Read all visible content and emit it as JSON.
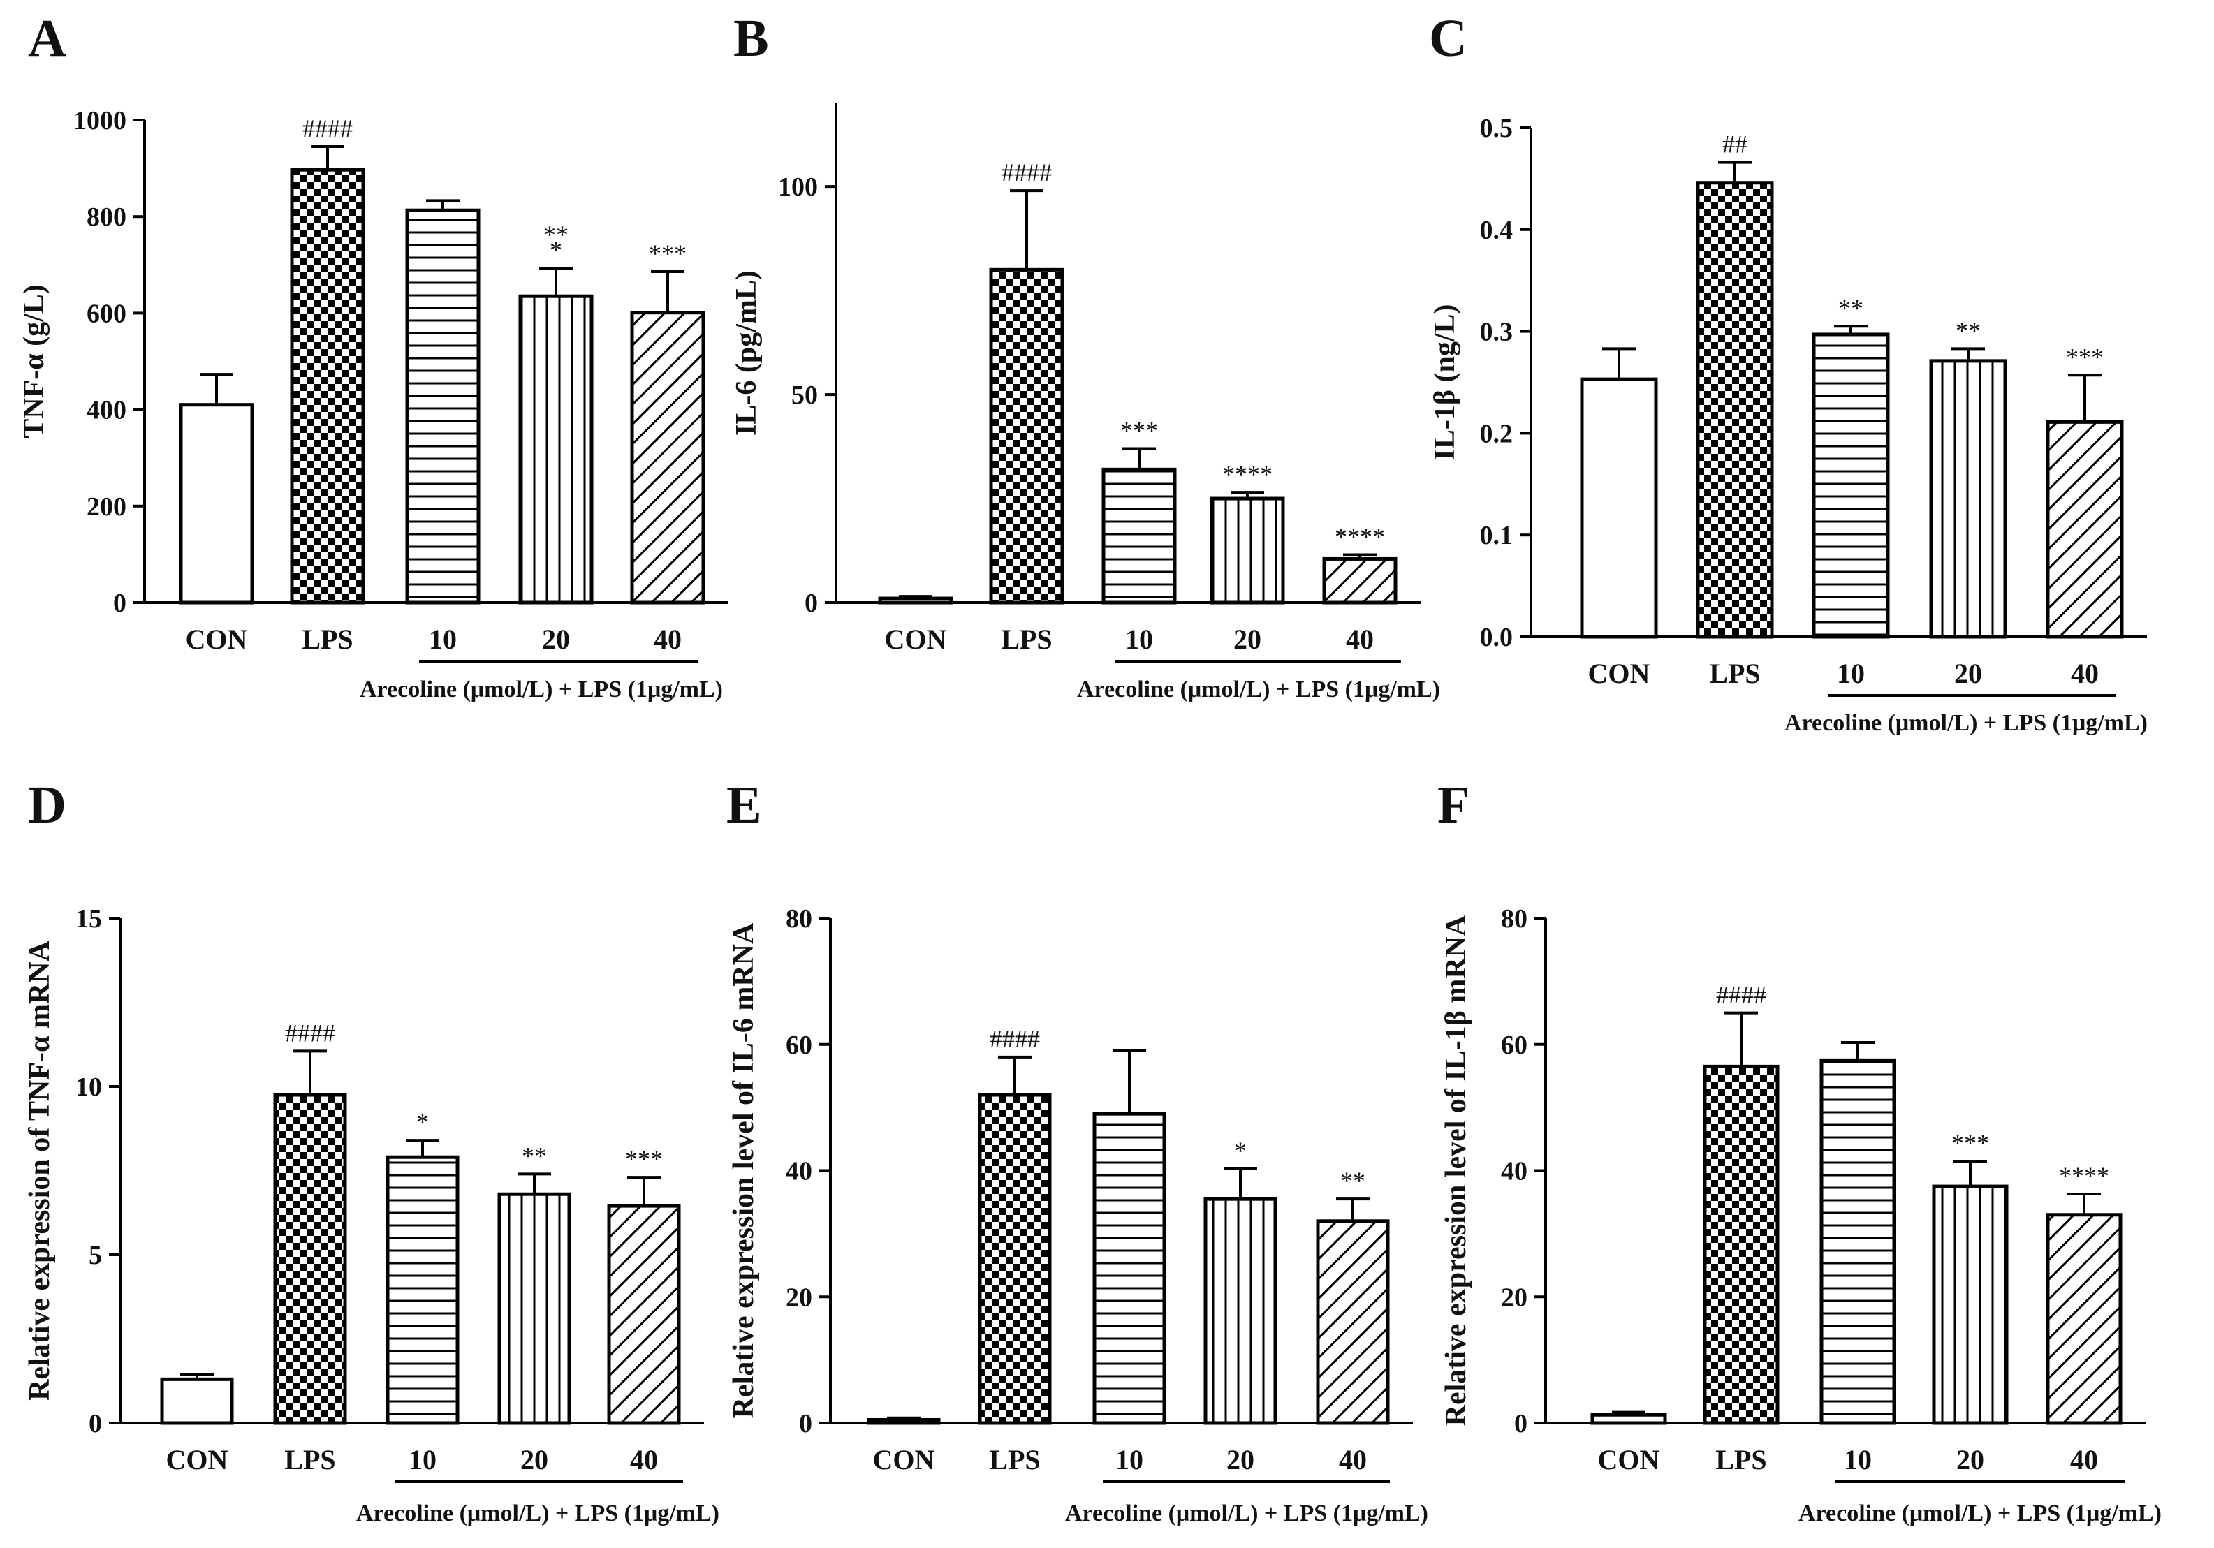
{
  "chart_data": [
    {
      "panel": "A",
      "type": "bar",
      "ylabel": "TNF-α (g/L)",
      "categories": [
        "CON",
        "LPS",
        "10",
        "20",
        "40"
      ],
      "values": [
        410,
        897,
        813,
        635,
        601
      ],
      "errors": [
        63,
        48,
        20,
        58,
        85
      ],
      "significance": [
        "",
        "####",
        "",
        "**\n*",
        "***"
      ],
      "group_label": "Arecoline (μmol/L) + LPS (1μg/mL)",
      "ylim": [
        0,
        1000
      ],
      "yticks": [
        0,
        200,
        400,
        600,
        800,
        1000
      ],
      "ytick_labels": [
        "0",
        "200",
        "400",
        "600",
        "800",
        "1000"
      ]
    },
    {
      "panel": "B",
      "type": "bar",
      "ylabel": "IL-6 (pg/mL)",
      "categories": [
        "CON",
        "LPS",
        "10",
        "20",
        "40"
      ],
      "values": [
        1,
        80,
        32,
        25,
        10.5
      ],
      "errors": [
        0.5,
        19,
        5,
        1.5,
        1
      ],
      "significance": [
        "",
        "####",
        "***",
        "****",
        "****"
      ],
      "group_label": "Arecoline (μmol/L) + LPS (1μg/mL)",
      "ylim": [
        0,
        120
      ],
      "yticks": [
        0,
        50,
        100
      ],
      "ytick_labels": [
        "0",
        "50",
        "100"
      ]
    },
    {
      "panel": "C",
      "type": "bar",
      "ylabel": "IL-1β (ng/L)",
      "categories": [
        "CON",
        "LPS",
        "10",
        "20",
        "40"
      ],
      "values": [
        0.253,
        0.446,
        0.297,
        0.271,
        0.211
      ],
      "errors": [
        0.03,
        0.02,
        0.008,
        0.012,
        0.046
      ],
      "significance": [
        "",
        "##",
        "**",
        "**",
        "***"
      ],
      "group_label": "Arecoline (μmol/L) + LPS (1μg/mL)",
      "ylim": [
        0,
        0.5
      ],
      "yticks": [
        0,
        0.1,
        0.2,
        0.3,
        0.4,
        0.5
      ],
      "ytick_labels": [
        "0.0",
        "0.1",
        "0.2",
        "0.3",
        "0.4",
        "0.5"
      ]
    },
    {
      "panel": "D",
      "type": "bar",
      "ylabel": "Relative expression of TNF-α mRNA",
      "categories": [
        "CON",
        "LPS",
        "10",
        "20",
        "40"
      ],
      "values": [
        1.3,
        9.75,
        7.9,
        6.8,
        6.45
      ],
      "errors": [
        0.15,
        1.3,
        0.5,
        0.6,
        0.85
      ],
      "significance": [
        "",
        "####",
        "*",
        "**",
        "***"
      ],
      "group_label": "Arecoline (μmol/L) + LPS (1μg/mL)",
      "ylim": [
        0,
        15
      ],
      "yticks": [
        0,
        5,
        10,
        15
      ],
      "ytick_labels": [
        "0",
        "5",
        "10",
        "15"
      ]
    },
    {
      "panel": "E",
      "type": "bar",
      "ylabel": "Relative expression level of IL-6 mRNA",
      "categories": [
        "CON",
        "LPS",
        "10",
        "20",
        "40"
      ],
      "values": [
        0.5,
        52,
        49,
        35.5,
        32
      ],
      "errors": [
        0.3,
        6,
        10,
        4.8,
        3.5
      ],
      "significance": [
        "",
        "####",
        "",
        "*",
        "**"
      ],
      "group_label": "Arecoline (μmol/L) + LPS (1μg/mL)",
      "ylim": [
        0,
        80
      ],
      "yticks": [
        0,
        20,
        40,
        60,
        80
      ],
      "ytick_labels": [
        "0",
        "20",
        "40",
        "60",
        "80"
      ]
    },
    {
      "panel": "F",
      "type": "bar",
      "ylabel": "Relative expression level of IL-1β mRNA",
      "categories": [
        "CON",
        "LPS",
        "10",
        "20",
        "40"
      ],
      "values": [
        1.3,
        56.5,
        57.5,
        37.5,
        33
      ],
      "errors": [
        0.4,
        8.5,
        2.8,
        4,
        3.3
      ],
      "significance": [
        "",
        "####",
        "",
        "***",
        "****"
      ],
      "group_label": "Arecoline (μmol/L) + LPS (1μg/mL)",
      "ylim": [
        0,
        80
      ],
      "yticks": [
        0,
        20,
        40,
        60,
        80
      ],
      "ytick_labels": [
        "0",
        "20",
        "40",
        "60",
        "80"
      ]
    }
  ]
}
